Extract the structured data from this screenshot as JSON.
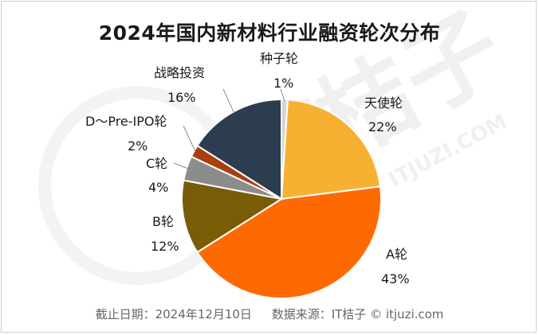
{
  "chart_data": {
    "type": "pie",
    "title": "2024年国内新材料行业融资轮次分布",
    "slices": [
      {
        "label": "种子轮",
        "value": 1,
        "value_label": "1%",
        "color": "#d4d4d4"
      },
      {
        "label": "天使轮",
        "value": 22,
        "value_label": "22%",
        "color": "#f6b132"
      },
      {
        "label": "A轮",
        "value": 43,
        "value_label": "43%",
        "color": "#ff6a00"
      },
      {
        "label": "B轮",
        "value": 12,
        "value_label": "12%",
        "color": "#7a5c06"
      },
      {
        "label": "C轮",
        "value": 4,
        "value_label": "4%",
        "color": "#8c8c8c"
      },
      {
        "label": "D～Pre-IPO轮",
        "value": 2,
        "value_label": "2%",
        "color": "#a7400d"
      },
      {
        "label": "战略投资",
        "value": 16,
        "value_label": "16%",
        "color": "#2c3d50"
      }
    ]
  },
  "footer": {
    "date_text": "截止日期：2024年12月10日",
    "source_text": "数据来源：IT桔子 © itjuzi.com"
  },
  "watermark": {
    "logo": "IT桔子",
    "url": "ITJUZI.COM"
  }
}
